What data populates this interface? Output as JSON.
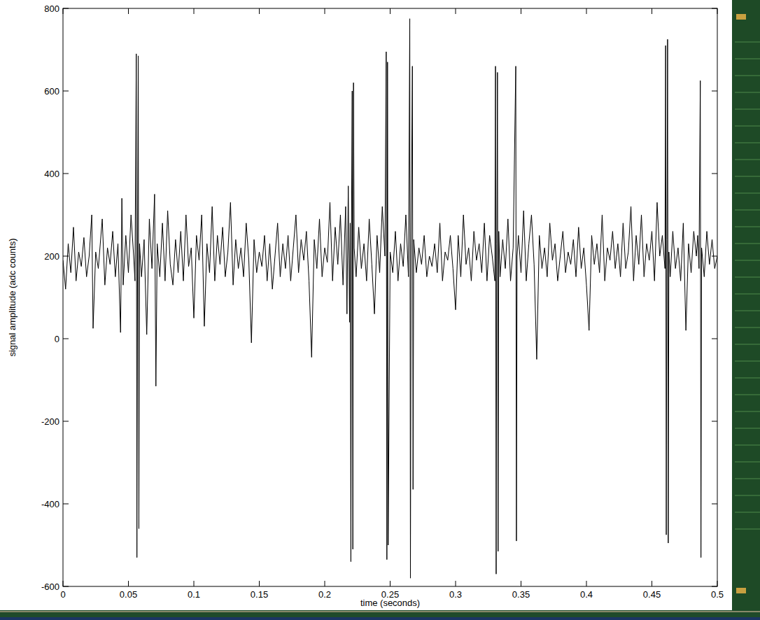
{
  "chart_data": {
    "type": "line",
    "x_label": "time (seconds)",
    "y_label": "signal amplitude (adc counts)",
    "color": "#000000",
    "grid": false,
    "xlim": [
      0,
      0.5
    ],
    "ylim": [
      -600,
      800
    ],
    "xticks": [
      0,
      0.05,
      0.1,
      0.15,
      0.2,
      0.25,
      0.3,
      0.35,
      0.4,
      0.45,
      0.5
    ],
    "yticks": [
      -600,
      -400,
      -200,
      0,
      200,
      400,
      600,
      800
    ],
    "x": [
      0,
      0.002,
      0.004,
      0.006,
      0.008,
      0.01,
      0.012,
      0.014,
      0.016,
      0.018,
      0.02,
      0.022,
      0.023,
      0.025,
      0.027,
      0.03,
      0.032,
      0.034,
      0.036,
      0.038,
      0.04,
      0.042,
      0.044,
      0.045,
      0.046,
      0.048,
      0.05,
      0.052,
      0.054,
      0.055,
      0.056,
      0.0565,
      0.057,
      0.0575,
      0.058,
      0.0585,
      0.06,
      0.062,
      0.064,
      0.066,
      0.068,
      0.07,
      0.071,
      0.072,
      0.074,
      0.076,
      0.078,
      0.08,
      0.082,
      0.084,
      0.086,
      0.088,
      0.09,
      0.092,
      0.094,
      0.096,
      0.098,
      0.1,
      0.102,
      0.104,
      0.106,
      0.108,
      0.11,
      0.112,
      0.114,
      0.116,
      0.118,
      0.12,
      0.122,
      0.124,
      0.126,
      0.128,
      0.13,
      0.132,
      0.134,
      0.136,
      0.138,
      0.14,
      0.142,
      0.144,
      0.146,
      0.148,
      0.15,
      0.152,
      0.154,
      0.156,
      0.158,
      0.16,
      0.162,
      0.164,
      0.166,
      0.168,
      0.17,
      0.172,
      0.174,
      0.176,
      0.178,
      0.18,
      0.182,
      0.184,
      0.186,
      0.188,
      0.19,
      0.192,
      0.194,
      0.196,
      0.198,
      0.2,
      0.202,
      0.204,
      0.206,
      0.208,
      0.21,
      0.212,
      0.214,
      0.216,
      0.217,
      0.218,
      0.219,
      0.2195,
      0.22,
      0.2205,
      0.221,
      0.2215,
      0.222,
      0.2225,
      0.224,
      0.226,
      0.228,
      0.23,
      0.232,
      0.234,
      0.236,
      0.238,
      0.24,
      0.242,
      0.244,
      0.246,
      0.247,
      0.2475,
      0.248,
      0.2485,
      0.25,
      0.252,
      0.254,
      0.256,
      0.258,
      0.26,
      0.262,
      0.264,
      0.265,
      0.2655,
      0.266,
      0.267,
      0.2675,
      0.268,
      0.27,
      0.272,
      0.274,
      0.276,
      0.278,
      0.28,
      0.282,
      0.284,
      0.286,
      0.288,
      0.29,
      0.292,
      0.294,
      0.296,
      0.298,
      0.3,
      0.302,
      0.304,
      0.306,
      0.308,
      0.31,
      0.312,
      0.314,
      0.316,
      0.318,
      0.32,
      0.322,
      0.324,
      0.326,
      0.328,
      0.33,
      0.3305,
      0.331,
      0.3315,
      0.332,
      0.3325,
      0.333,
      0.334,
      0.336,
      0.338,
      0.34,
      0.342,
      0.344,
      0.346,
      0.3465,
      0.347,
      0.348,
      0.35,
      0.352,
      0.354,
      0.356,
      0.358,
      0.36,
      0.362,
      0.364,
      0.366,
      0.368,
      0.37,
      0.372,
      0.374,
      0.376,
      0.378,
      0.38,
      0.382,
      0.384,
      0.386,
      0.388,
      0.39,
      0.392,
      0.394,
      0.396,
      0.398,
      0.4,
      0.402,
      0.404,
      0.406,
      0.408,
      0.41,
      0.412,
      0.414,
      0.416,
      0.418,
      0.42,
      0.422,
      0.424,
      0.426,
      0.428,
      0.43,
      0.432,
      0.434,
      0.436,
      0.438,
      0.44,
      0.442,
      0.444,
      0.446,
      0.448,
      0.45,
      0.452,
      0.454,
      0.456,
      0.458,
      0.46,
      0.4605,
      0.461,
      0.4615,
      0.462,
      0.4625,
      0.463,
      0.464,
      0.466,
      0.468,
      0.47,
      0.472,
      0.474,
      0.476,
      0.478,
      0.48,
      0.482,
      0.484,
      0.485,
      0.486,
      0.487,
      0.4875,
      0.488,
      0.49,
      0.492,
      0.494,
      0.496,
      0.498,
      0.5
    ],
    "values": [
      190,
      120,
      230,
      160,
      270,
      140,
      210,
      175,
      245,
      150,
      200,
      300,
      25,
      210,
      170,
      290,
      130,
      220,
      180,
      260,
      150,
      230,
      15,
      340,
      130,
      250,
      160,
      300,
      200,
      140,
      690,
      -530,
      200,
      685,
      -460,
      230,
      150,
      240,
      10,
      290,
      170,
      350,
      -115,
      230,
      150,
      280,
      140,
      310,
      180,
      130,
      240,
      160,
      260,
      140,
      300,
      175,
      220,
      50,
      250,
      190,
      300,
      30,
      230,
      160,
      320,
      140,
      250,
      180,
      270,
      150,
      210,
      330,
      130,
      240,
      170,
      220,
      150,
      280,
      190,
      -10,
      240,
      160,
      210,
      175,
      250,
      140,
      230,
      120,
      200,
      280,
      150,
      230,
      170,
      250,
      140,
      220,
      300,
      160,
      240,
      190,
      260,
      140,
      -45,
      240,
      170,
      290,
      150,
      220,
      185,
      330,
      140,
      270,
      180,
      300,
      130,
      320,
      60,
      370,
      40,
      280,
      -540,
      300,
      600,
      -510,
      620,
      220,
      150,
      270,
      170,
      230,
      140,
      290,
      180,
      60,
      250,
      160,
      320,
      200,
      695,
      -535,
      670,
      -500,
      210,
      160,
      260,
      140,
      230,
      175,
      300,
      150,
      775,
      -580,
      200,
      660,
      -365,
      240,
      160,
      220,
      180,
      250,
      150,
      200,
      175,
      230,
      160,
      280,
      140,
      210,
      190,
      250,
      170,
      70,
      250,
      150,
      300,
      180,
      220,
      140,
      260,
      190,
      230,
      160,
      280,
      140,
      250,
      200,
      140,
      660,
      -570,
      230,
      645,
      -515,
      260,
      150,
      240,
      170,
      290,
      140,
      220,
      660,
      -490,
      200,
      250,
      160,
      310,
      140,
      230,
      300,
      180,
      -50,
      250,
      170,
      220,
      150,
      280,
      190,
      230,
      140,
      200,
      260,
      160,
      210,
      180,
      240,
      150,
      270,
      170,
      220,
      130,
      20,
      250,
      180,
      230,
      160,
      300,
      140,
      220,
      190,
      260,
      170,
      230,
      150,
      280,
      170,
      210,
      320,
      140,
      250,
      180,
      300,
      150,
      230,
      190,
      260,
      140,
      330,
      200,
      250,
      170,
      710,
      -475,
      240,
      725,
      -495,
      210,
      150,
      260,
      170,
      220,
      140,
      280,
      20,
      230,
      160,
      260,
      200,
      250,
      170,
      625,
      -530,
      220,
      150,
      260,
      180,
      240,
      170,
      200
    ]
  }
}
